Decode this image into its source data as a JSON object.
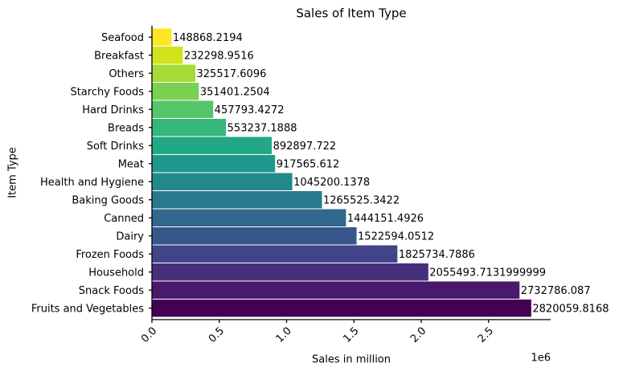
{
  "chart_data": {
    "type": "barh",
    "title": "Sales of Item Type",
    "xlabel": "Sales in million",
    "ylabel": "Item Type",
    "x_offset_label": "1e6",
    "categories": [
      "Seafood",
      "Breakfast",
      "Others",
      "Starchy Foods",
      "Hard Drinks",
      "Breads",
      "Soft Drinks",
      "Meat",
      "Health and Hygiene",
      "Baking Goods",
      "Canned",
      "Dairy",
      "Frozen Foods",
      "Household",
      "Snack Foods",
      "Fruits and Vegetables"
    ],
    "values": [
      148868.2194,
      232298.9516,
      325517.6096,
      351401.2504,
      457793.4272,
      553237.1888,
      892897.722,
      917565.612,
      1045200.1378,
      1265525.3422,
      1444151.4926,
      1522594.0512,
      1825734.7886,
      2055493.7131999999,
      2732786.087,
      2820059.8168
    ],
    "value_labels": [
      "148868.2194",
      "232298.9516",
      "325517.6096",
      "351401.2504",
      "457793.4272",
      "553237.1888",
      "892897.722",
      "917565.612",
      "1045200.1378",
      "1265525.3422",
      "1444151.4926",
      "1522594.0512",
      "1825734.7886",
      "2055493.7131999999",
      "2732786.087",
      "2820059.8168"
    ],
    "colors": [
      "#fde725",
      "#d2e21b",
      "#a5db36",
      "#7ad151",
      "#54c568",
      "#35b779",
      "#22a884",
      "#1f988b",
      "#23888e",
      "#2a788e",
      "#31688e",
      "#39568c",
      "#414487",
      "#472f7d",
      "#481a6c",
      "#440154"
    ],
    "xlim": [
      0,
      2961062.8
    ],
    "xticks": [
      {
        "value": 0,
        "label": "0.0"
      },
      {
        "value": 500000,
        "label": "0.5"
      },
      {
        "value": 1000000,
        "label": "1.0"
      },
      {
        "value": 1500000,
        "label": "1.5"
      },
      {
        "value": 2000000,
        "label": "2.0"
      },
      {
        "value": 2500000,
        "label": "2.5"
      }
    ],
    "grid": false
  }
}
